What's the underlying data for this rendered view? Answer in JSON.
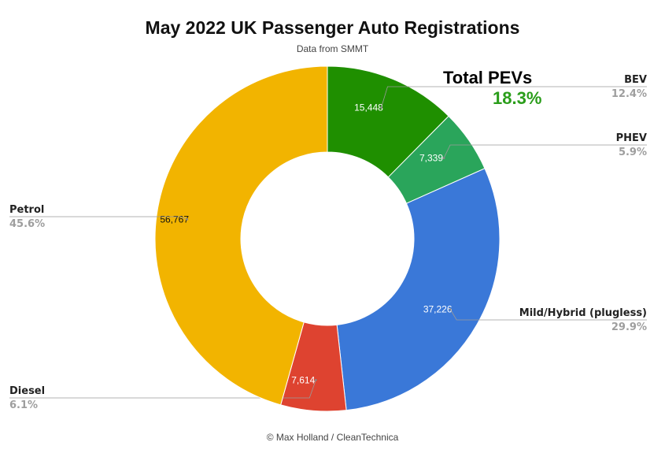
{
  "title": "May 2022 UK Passenger Auto Registrations",
  "subtitle": "Data from SMMT",
  "callout": {
    "label": "Total PEVs",
    "value": "18.3%",
    "color": "#2a9d1a"
  },
  "credit": "© Max Holland / CleanTechnica",
  "chart_data": {
    "type": "pie",
    "donut": true,
    "start_angle_deg": 0,
    "direction": "clockwise",
    "slices": [
      {
        "label": "BEV",
        "value": 15448,
        "value_label": "15,448",
        "percent": "12.4%",
        "color": "#1f8f00",
        "text_color": "#ffffff"
      },
      {
        "label": "PHEV",
        "value": 7339,
        "value_label": "7,339",
        "percent": "5.9%",
        "color": "#2aa55b",
        "text_color": "#ffffff"
      },
      {
        "label": "Mild/Hybrid (plugless)",
        "value": 37226,
        "value_label": "37,226",
        "percent": "29.9%",
        "color": "#3a78d8",
        "text_color": "#ffffff"
      },
      {
        "label": "Diesel",
        "value": 7614,
        "value_label": "7,614",
        "percent": "6.1%",
        "color": "#de4330",
        "text_color": "#ffffff"
      },
      {
        "label": "Petrol",
        "value": 56767,
        "value_label": "56,767",
        "percent": "45.6%",
        "color": "#f2b400",
        "text_color": "#111111"
      }
    ]
  }
}
